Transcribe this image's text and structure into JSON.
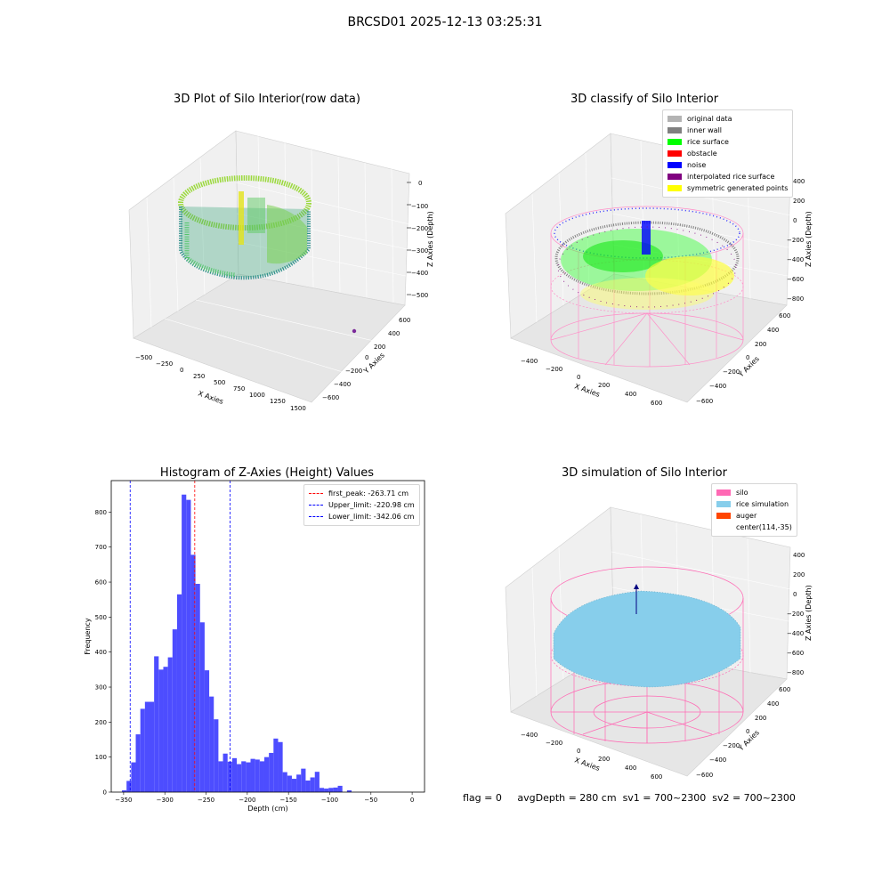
{
  "suptitle": "BRCSD01 2025-12-13 03:25:31",
  "panels": {
    "raw": {
      "title": "3D Plot of Silo Interior(row data)",
      "xlabel": "X Axies",
      "ylabel": "Y Axies",
      "zlabel": "Z Axies (Depth)",
      "xticks": [
        "−500",
        "−250",
        "0",
        "250",
        "500",
        "750",
        "1000",
        "1250",
        "1500"
      ],
      "yticks": [
        "600",
        "400",
        "200",
        "0",
        "−200",
        "−400",
        "−600"
      ],
      "zticks": [
        "0",
        "−100",
        "−200",
        "−300",
        "−400",
        "−500"
      ]
    },
    "classify": {
      "title": "3D classify of Silo Interior",
      "xlabel": "X Axies",
      "ylabel": "Y Axies",
      "zlabel": "Z Axies (Depth)",
      "xticks": [
        "−400",
        "−200",
        "0",
        "200",
        "400",
        "600"
      ],
      "yticks": [
        "600",
        "400",
        "200",
        "0",
        "−200",
        "−400",
        "−600"
      ],
      "zticks": [
        "400",
        "200",
        "0",
        "−200",
        "−400",
        "−600",
        "−800"
      ],
      "legend": [
        {
          "label": "original data",
          "color": "#b3b3b3"
        },
        {
          "label": "inner wall",
          "color": "#808080"
        },
        {
          "label": "rice surface",
          "color": "#00ff00"
        },
        {
          "label": "obstacle",
          "color": "#ff0000"
        },
        {
          "label": "noise",
          "color": "#0000ff"
        },
        {
          "label": "interpolated rice surface",
          "color": "#800080"
        },
        {
          "label": "symmetric generated points",
          "color": "#ffff00"
        }
      ]
    },
    "simulation": {
      "title": "3D simulation of Silo Interior",
      "xlabel": "X Axies",
      "ylabel": "Y Axies",
      "zlabel": "Z Axies (Depth)",
      "xticks": [
        "−400",
        "−200",
        "0",
        "200",
        "400",
        "600"
      ],
      "yticks": [
        "600",
        "400",
        "200",
        "0",
        "−200",
        "−400",
        "−600"
      ],
      "zticks": [
        "400",
        "200",
        "0",
        "−200",
        "−400",
        "−600",
        "−800"
      ],
      "legend": [
        {
          "label": "silo",
          "color": "#ff69b4"
        },
        {
          "label": "rice simulation",
          "color": "#87ceeb"
        },
        {
          "label": "auger",
          "color": "#ff4500"
        },
        {
          "label": "center(114,-35)",
          "color": ""
        }
      ]
    }
  },
  "chart_data": {
    "type": "bar",
    "title": "Histogram of Z-Axies (Height) Values",
    "xlabel": "Depth (cm)",
    "ylabel": "Frequency",
    "xlim": [
      -365,
      15
    ],
    "ylim": [
      0,
      890
    ],
    "xticks": [
      -350,
      -300,
      -250,
      -200,
      -150,
      -100,
      -50,
      0
    ],
    "yticks": [
      0,
      100,
      200,
      300,
      400,
      500,
      600,
      700,
      800
    ],
    "bin_start": -352,
    "bin_width": 5.57,
    "values": [
      5,
      32,
      85,
      165,
      238,
      258,
      258,
      388,
      350,
      358,
      385,
      465,
      565,
      850,
      835,
      678,
      595,
      485,
      348,
      273,
      208,
      88,
      110,
      87,
      97,
      80,
      88,
      85,
      95,
      93,
      88,
      100,
      112,
      153,
      143,
      57,
      47,
      38,
      50,
      67,
      33,
      42,
      58,
      12,
      10,
      12,
      13,
      18,
      0,
      5
    ],
    "bar_color": "#4d4dff",
    "lines": [
      {
        "label": "first_peak: -263.71 cm",
        "x": -263.71,
        "color": "#ff0000"
      },
      {
        "label": "Upper_limit: -220.98 cm",
        "x": -220.98,
        "color": "#0000ff"
      },
      {
        "label": "Lower_limit: -342.06 cm",
        "x": -342.06,
        "color": "#0000ff"
      }
    ],
    "legend_position": "top-right"
  },
  "status": {
    "flag": "flag = 0",
    "avg_depth": "avgDepth = 280 cm",
    "sv1": "sv1 = 700~2300",
    "sv2": "sv2 = 700~2300"
  }
}
